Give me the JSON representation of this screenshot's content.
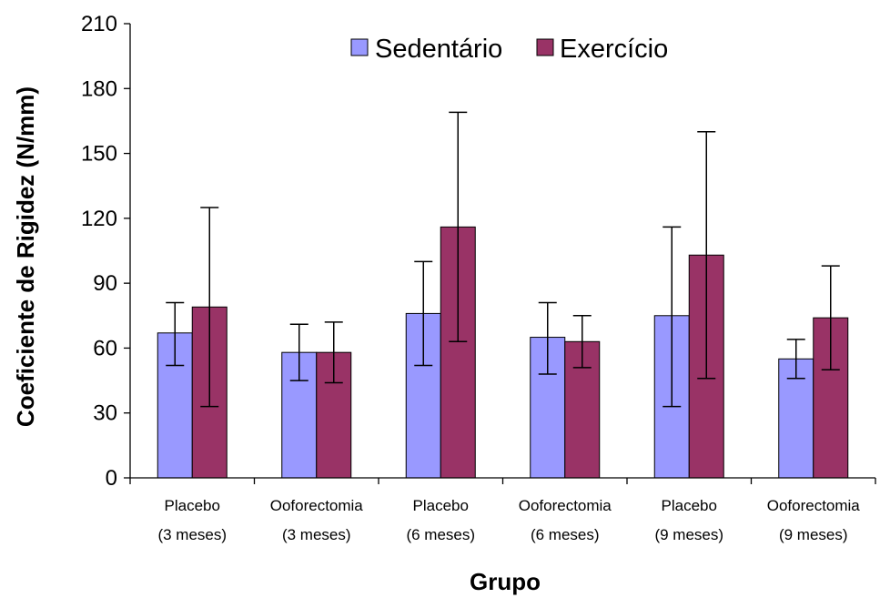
{
  "chart_data": {
    "type": "bar",
    "xlabel": "Grupo",
    "ylabel": "Coeficiente de Rigidez (N/mm)",
    "ylim": [
      0,
      210
    ],
    "yticks": [
      0,
      30,
      60,
      90,
      120,
      150,
      180,
      210
    ],
    "categories": [
      [
        "Placebo",
        "(3 meses)"
      ],
      [
        "Ooforectomia",
        "(3 meses)"
      ],
      [
        "Placebo",
        "(6 meses)"
      ],
      [
        "Ooforectomia",
        "(6 meses)"
      ],
      [
        "Placebo",
        "(9 meses)"
      ],
      [
        "Ooforectomia",
        "(9 meses)"
      ]
    ],
    "series": [
      {
        "name": "Sedentário",
        "color": "#9999FF",
        "values": [
          67,
          58,
          76,
          65,
          75,
          55
        ],
        "error_low": [
          52,
          45,
          52,
          48,
          33,
          46
        ],
        "error_high": [
          81,
          71,
          100,
          81,
          116,
          64
        ]
      },
      {
        "name": "Exercício",
        "color": "#993366",
        "values": [
          79,
          58,
          116,
          63,
          103,
          74
        ],
        "error_low": [
          33,
          44,
          63,
          51,
          46,
          50
        ],
        "error_high": [
          125,
          72,
          169,
          75,
          160,
          98
        ]
      }
    ],
    "grid": false,
    "legend_position": "top-center"
  }
}
